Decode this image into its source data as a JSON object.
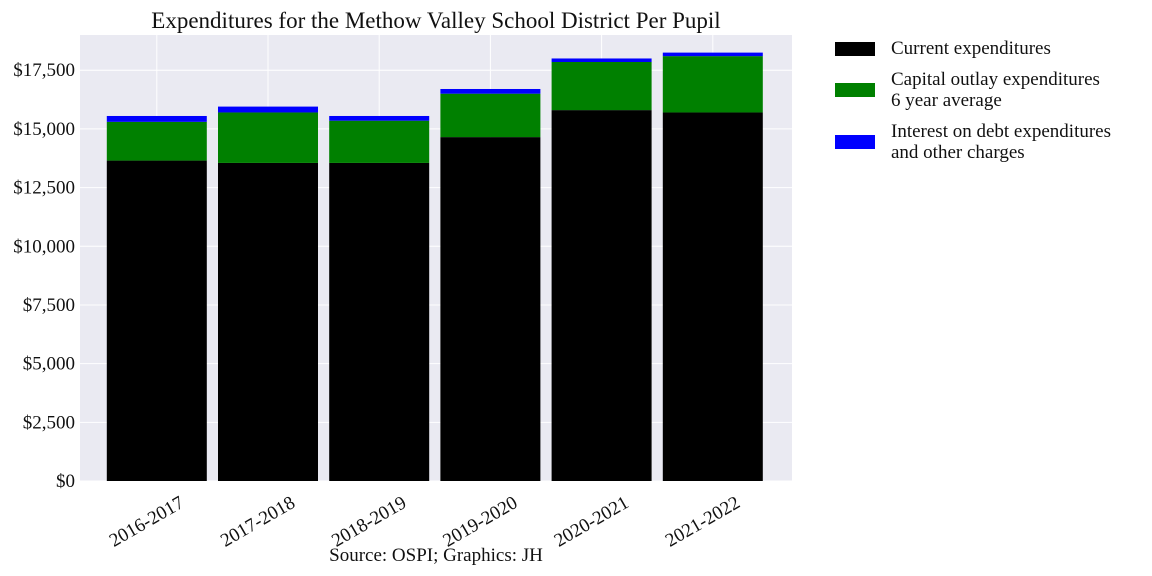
{
  "chart_data": {
    "type": "bar",
    "stacked": true,
    "title": "Expenditures for the Methow Valley School District Per Pupil",
    "caption": "Source: OSPI; Graphics: JH",
    "categories": [
      "2016-2017",
      "2017-2018",
      "2018-2019",
      "2019-2020",
      "2020-2021",
      "2021-2022"
    ],
    "series": [
      {
        "name_lines": [
          "Current expenditures"
        ],
        "color": "#000000",
        "values": [
          13650,
          13550,
          13550,
          14650,
          15800,
          15700
        ]
      },
      {
        "name_lines": [
          "Capital outlay expenditures",
          "6 year average"
        ],
        "color": "#008000",
        "values": [
          1650,
          2150,
          1800,
          1850,
          2050,
          2400
        ]
      },
      {
        "name_lines": [
          "Interest on debt expenditures",
          "and other charges"
        ],
        "color": "#0000ff",
        "values": [
          250,
          250,
          200,
          200,
          150,
          150
        ]
      }
    ],
    "ylim": [
      0,
      19000
    ],
    "yticks": [
      0,
      2500,
      5000,
      7500,
      10000,
      12500,
      15000,
      17500
    ],
    "ytick_labels": [
      "$0",
      "$2,500",
      "$5,000",
      "$7,500",
      "$10,000",
      "$12,500",
      "$15,000",
      "$17,500"
    ],
    "legend_position": "outside-right-top",
    "grid": true,
    "background": "#eaeaf2"
  }
}
